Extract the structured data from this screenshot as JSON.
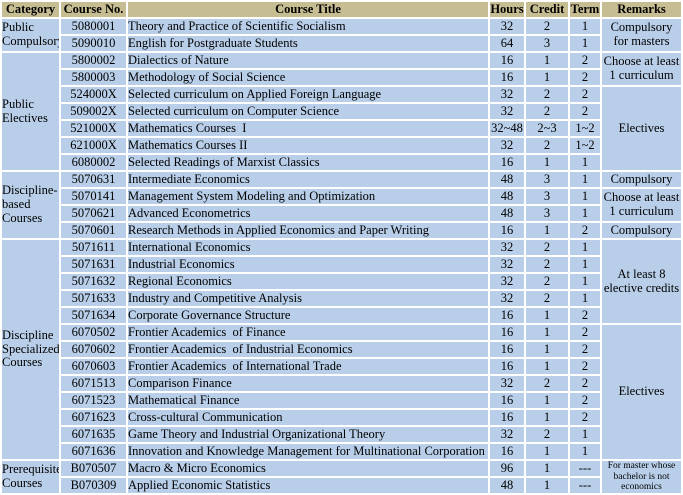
{
  "colors": {
    "header_bg": "#c7bd93",
    "cell_bg": "#b9cfe9",
    "grid": "#ffffff",
    "text": "#000000"
  },
  "table": {
    "headers": [
      "Category",
      "Course No.",
      "Course Title",
      "Hours",
      "Credit",
      "Term",
      "Remarks"
    ],
    "categories": [
      {
        "label": "Public Compulsory",
        "rows": 2
      },
      {
        "label": "Public Electives",
        "rows": 7
      },
      {
        "label": "Discipline-based Courses",
        "rows": 4
      },
      {
        "label": "Discipline Specialized Courses",
        "rows": 13
      },
      {
        "label": "Prerequisite Courses",
        "rows": 2
      }
    ],
    "remarks": [
      {
        "label": "Compulsory for masters",
        "rows": 2,
        "small": false
      },
      {
        "label": "Choose at least 1 curriculum",
        "rows": 2,
        "small": false
      },
      {
        "label": "Electives",
        "rows": 5,
        "small": false
      },
      {
        "label": "Compulsory",
        "rows": 1,
        "small": false
      },
      {
        "label": "Choose at least 1 curriculum",
        "rows": 2,
        "small": false
      },
      {
        "label": "Compulsory",
        "rows": 1,
        "small": false
      },
      {
        "label": "At least 8 elective credits",
        "rows": 5,
        "small": false
      },
      {
        "label": "Electives",
        "rows": 8,
        "small": false
      },
      {
        "label": "For master whose bachelor is not economics",
        "rows": 2,
        "small": true
      }
    ],
    "rows": [
      {
        "no": "5080001",
        "title": "Theory and Practice of Scientific Socialism",
        "hours": "32",
        "credit": "2",
        "term": "1"
      },
      {
        "no": "5090010",
        "title": "English for Postgraduate Students",
        "hours": "64",
        "credit": "3",
        "term": "1"
      },
      {
        "no": "5800002",
        "title": "Dialectics of Nature",
        "hours": "16",
        "credit": "1",
        "term": "2"
      },
      {
        "no": "5800003",
        "title": "Methodology of Social Science",
        "hours": "16",
        "credit": "1",
        "term": "2"
      },
      {
        "no": "524000X",
        "title": "Selected curriculum on Applied Foreign Language",
        "hours": "32",
        "credit": "2",
        "term": "2"
      },
      {
        "no": "509002X",
        "title": "Selected curriculum on Computer Science",
        "hours": "32",
        "credit": "2",
        "term": "2"
      },
      {
        "no": "521000X",
        "title": "Mathematics Courses  I",
        "hours": "32~48",
        "credit": "2~3",
        "term": "1~2"
      },
      {
        "no": "621000X",
        "title": "Mathematics Courses II",
        "hours": "32",
        "credit": "2",
        "term": "1~2"
      },
      {
        "no": "6080002",
        "title": "Selected Readings of Marxist Classics",
        "hours": "16",
        "credit": "1",
        "term": "1"
      },
      {
        "no": "5070631",
        "title": "Intermediate Economics",
        "hours": "48",
        "credit": "3",
        "term": "1"
      },
      {
        "no": "5070141",
        "title": "Management System Modeling and Optimization",
        "hours": "48",
        "credit": "3",
        "term": "1"
      },
      {
        "no": "5070621",
        "title": "Advanced Econometrics",
        "hours": "48",
        "credit": "3",
        "term": "1"
      },
      {
        "no": "5070601",
        "title": "Research Methods in Applied Economics and Paper Writing",
        "hours": "16",
        "credit": "1",
        "term": "2"
      },
      {
        "no": "5071611",
        "title": "International Economics",
        "hours": "32",
        "credit": "2",
        "term": "1"
      },
      {
        "no": "5071631",
        "title": "Industrial Economics",
        "hours": "32",
        "credit": "2",
        "term": "1"
      },
      {
        "no": "5071632",
        "title": "Regional Economics",
        "hours": "32",
        "credit": "2",
        "term": "1"
      },
      {
        "no": "5071633",
        "title": "Industry and Competitive Analysis",
        "hours": "32",
        "credit": "2",
        "term": "1"
      },
      {
        "no": "5071634",
        "title": "Corporate Governance Structure",
        "hours": "16",
        "credit": "1",
        "term": "2"
      },
      {
        "no": "6070502",
        "title": "Frontier Academics  of Finance",
        "hours": "16",
        "credit": "1",
        "term": "2"
      },
      {
        "no": "6070602",
        "title": "Frontier Academics  of Industrial Economics",
        "hours": "16",
        "credit": "1",
        "term": "2"
      },
      {
        "no": "6070603",
        "title": "Frontier Academics  of International Trade",
        "hours": "16",
        "credit": "1",
        "term": "2"
      },
      {
        "no": "6071513",
        "title": "Comparison Finance",
        "hours": "32",
        "credit": "2",
        "term": "2"
      },
      {
        "no": "6071523",
        "title": "Mathematical Finance",
        "hours": "16",
        "credit": "1",
        "term": "2"
      },
      {
        "no": "6071623",
        "title": "Cross-cultural Communication",
        "hours": "16",
        "credit": "1",
        "term": "2"
      },
      {
        "no": "6071635",
        "title": "Game Theory and Industrial Organizational Theory",
        "hours": "32",
        "credit": "2",
        "term": "1"
      },
      {
        "no": "6071636",
        "title": "Innovation and Knowledge Management for Multinational Corporation",
        "hours": "16",
        "credit": "1",
        "term": "1"
      },
      {
        "no": "B070507",
        "title": "Macro & Micro Economics",
        "hours": "96",
        "credit": "1",
        "term": "---"
      },
      {
        "no": "B070309",
        "title": "Applied Economic Statistics",
        "hours": "48",
        "credit": "1",
        "term": "---"
      }
    ]
  }
}
